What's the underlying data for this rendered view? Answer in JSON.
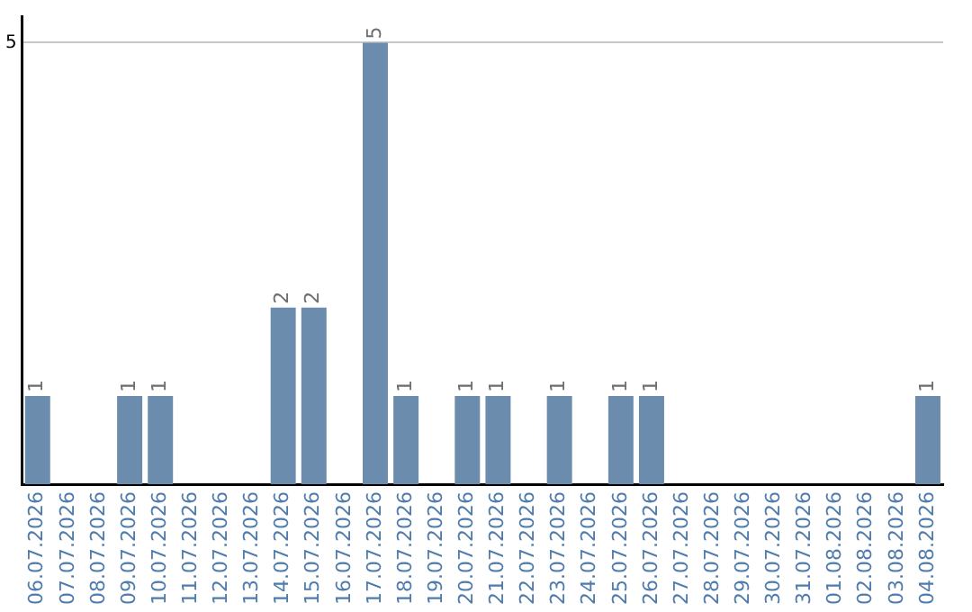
{
  "chart_data": {
    "type": "bar",
    "categories": [
      "06.07.2026",
      "07.07.2026",
      "08.07.2026",
      "09.07.2026",
      "10.07.2026",
      "11.07.2026",
      "12.07.2026",
      "13.07.2026",
      "14.07.2026",
      "15.07.2026",
      "16.07.2026",
      "17.07.2026",
      "18.07.2026",
      "19.07.2026",
      "20.07.2026",
      "21.07.2026",
      "22.07.2026",
      "23.07.2026",
      "24.07.2026",
      "25.07.2026",
      "26.07.2026",
      "27.07.2026",
      "28.07.2026",
      "29.07.2026",
      "30.07.2026",
      "31.07.2026",
      "01.08.2026",
      "02.08.2026",
      "03.08.2026",
      "04.08.2026"
    ],
    "values": [
      1,
      0,
      0,
      1,
      1,
      0,
      0,
      0,
      2,
      2,
      0,
      5,
      1,
      0,
      1,
      1,
      0,
      1,
      0,
      1,
      1,
      0,
      0,
      0,
      0,
      0,
      0,
      0,
      0,
      1
    ],
    "value_labels": [
      "1",
      null,
      null,
      "1",
      "1",
      null,
      null,
      null,
      "2",
      "2",
      null,
      "5",
      "1",
      null,
      "1",
      "1",
      null,
      "1",
      null,
      "1",
      "1",
      null,
      null,
      null,
      null,
      null,
      null,
      null,
      null,
      "1"
    ],
    "color": "#6b8cac",
    "ylim": [
      0,
      5.3
    ],
    "yticks": [
      5
    ],
    "grid": "y",
    "legend": false
  }
}
